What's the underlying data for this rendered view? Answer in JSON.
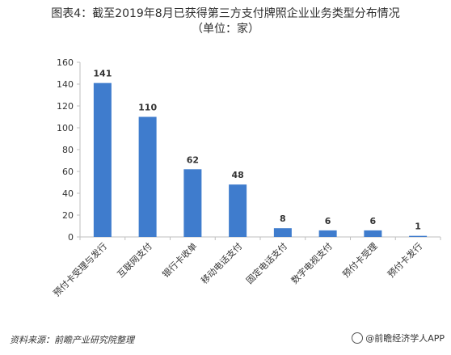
{
  "title": {
    "line1": "图表4：截至2019年8月已获得第三方支付牌照企业业务类型分布情况",
    "line2": "（单位：家）"
  },
  "chart_data": {
    "type": "bar",
    "categories": [
      "预付卡受理与发行",
      "互联网支付",
      "银行卡收单",
      "移动电话支付",
      "固定电话支付",
      "数字电视支付",
      "预付卡受理",
      "预付卡发行"
    ],
    "values": [
      141,
      110,
      62,
      48,
      8,
      6,
      6,
      1
    ],
    "yticks": [
      0,
      20,
      40,
      60,
      80,
      100,
      120,
      140,
      160
    ],
    "ylim": [
      0,
      160
    ],
    "bar_color": "#3f7ccd",
    "axis_color": "#bfbfbf",
    "grid": false,
    "legend": "none",
    "xlabel": "",
    "ylabel": ""
  },
  "footer": {
    "source": "资料来源：前瞻产业研究院整理",
    "brand": "@前瞻经济学人APP"
  }
}
